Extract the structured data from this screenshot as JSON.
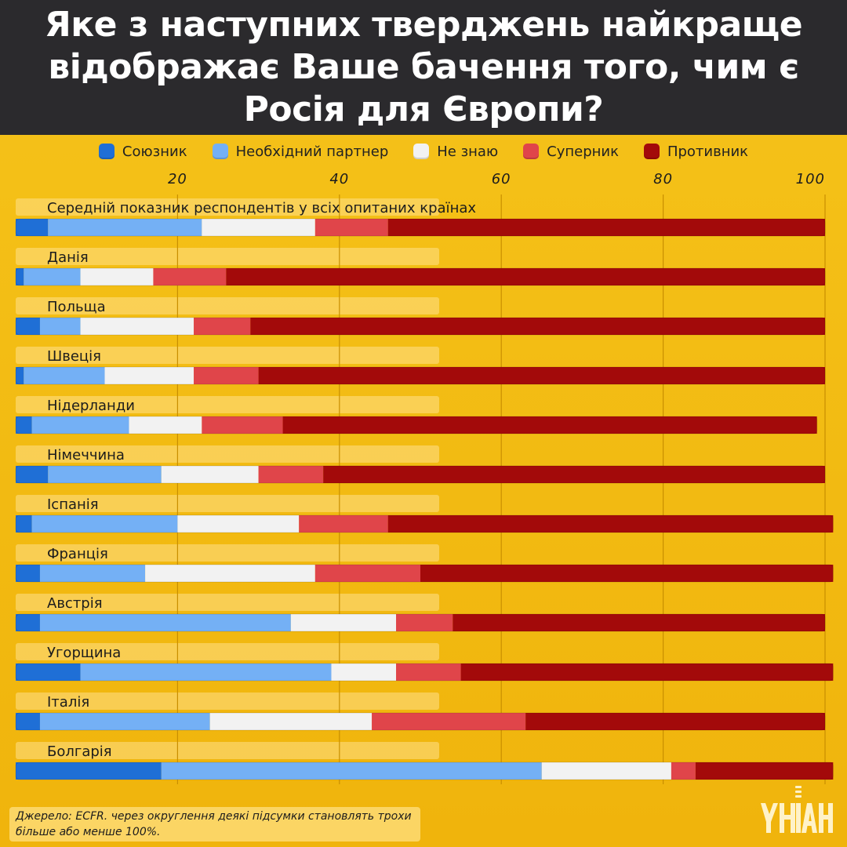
{
  "title": "Яке з наступних тверджень найкраще відображає Ваше бачення того, чим є Росія для Європи?",
  "legend": [
    {
      "label": "Союзник",
      "color": "#1f6fd6"
    },
    {
      "label": "Необхідний партнер",
      "color": "#74b0f5"
    },
    {
      "label": "Не знаю",
      "color": "#f2f2f2"
    },
    {
      "label": "Суперник",
      "color": "#e0454a"
    },
    {
      "label": "Противник",
      "color": "#a30a0a"
    }
  ],
  "chart_data": {
    "type": "bar",
    "orientation": "horizontal",
    "stacked": true,
    "xlim": [
      0,
      100
    ],
    "xticks": [
      20,
      40,
      60,
      80,
      100
    ],
    "grid": true,
    "legend_position": "top",
    "categories": [
      "Середній показник респондентів у всіх опитаних країнах",
      "Данія",
      "Польща",
      "Швеція",
      "Нідерланди",
      "Німеччина",
      "Іспанія",
      "Франція",
      "Австрія",
      "Угорщина",
      "Італія",
      "Болгарія"
    ],
    "series": [
      {
        "name": "Союзник",
        "color": "#1f6fd6",
        "values": [
          4,
          1,
          3,
          1,
          2,
          4,
          2,
          3,
          3,
          8,
          3,
          18
        ]
      },
      {
        "name": "Необхідний партнер",
        "color": "#74b0f5",
        "values": [
          19,
          7,
          5,
          10,
          12,
          14,
          18,
          13,
          31,
          31,
          21,
          47
        ]
      },
      {
        "name": "Не знаю",
        "color": "#f2f2f2",
        "values": [
          14,
          9,
          14,
          11,
          9,
          12,
          15,
          21,
          13,
          8,
          20,
          16
        ]
      },
      {
        "name": "Суперник",
        "color": "#e0454a",
        "values": [
          9,
          9,
          7,
          8,
          10,
          8,
          11,
          13,
          7,
          8,
          19,
          3
        ]
      },
      {
        "name": "Противник",
        "color": "#a30a0a",
        "values": [
          54,
          74,
          71,
          70,
          66,
          62,
          55,
          51,
          46,
          46,
          37,
          17
        ]
      }
    ]
  },
  "footnote": "Джерело: ECFR. через округлення деякі підсумки становлять трохи більше або менше 100%.",
  "logo": {
    "name": "unian-logo",
    "text": "УНІАН"
  }
}
